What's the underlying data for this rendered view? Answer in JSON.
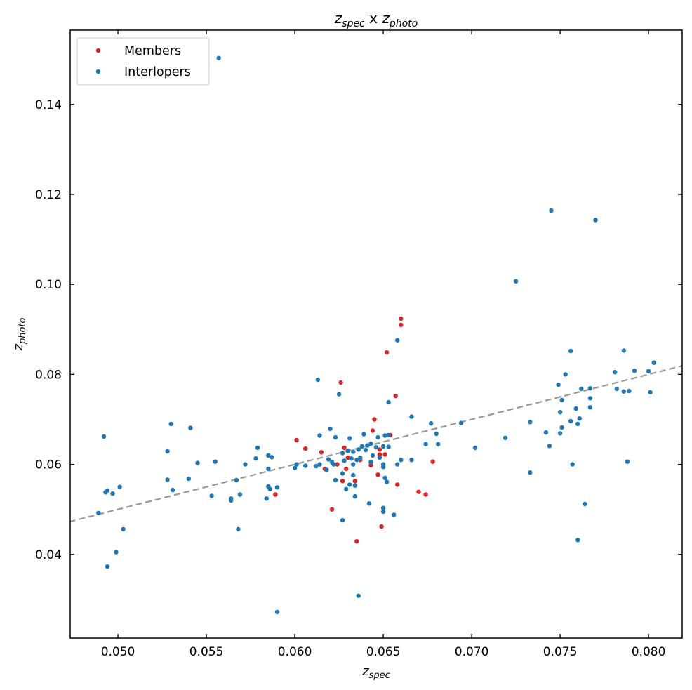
{
  "chart_data": {
    "type": "scatter",
    "title": {
      "main": "z",
      "sub1": "spec",
      "mid": " x ",
      "main2": "z",
      "sub2": "photo"
    },
    "xlabel": {
      "main": "z",
      "sub": "spec"
    },
    "ylabel": {
      "main": "z",
      "sub": "photo"
    },
    "xlim": [
      0.0473,
      0.0819
    ],
    "ylim": [
      0.0214,
      0.1565
    ],
    "xticks": [
      0.05,
      0.055,
      0.06,
      0.065,
      0.07,
      0.075,
      0.08
    ],
    "xtick_labels": [
      "0.050",
      "0.055",
      "0.060",
      "0.065",
      "0.070",
      "0.075",
      "0.080"
    ],
    "yticks": [
      0.04,
      0.06,
      0.08,
      0.1,
      0.12,
      0.14
    ],
    "ytick_labels": [
      "0.04",
      "0.06",
      "0.08",
      "0.10",
      "0.12",
      "0.14"
    ],
    "reference_line": {
      "type": "y=x",
      "style": "dashed",
      "color": "#999999"
    },
    "grid": false,
    "legend_position": "top-left",
    "series": [
      {
        "name": "Members",
        "color": "#d62728",
        "points": [
          [
            0.066,
            0.0924
          ],
          [
            0.066,
            0.091
          ],
          [
            0.0652,
            0.0849
          ],
          [
            0.0657,
            0.0752
          ],
          [
            0.0626,
            0.0782
          ],
          [
            0.0645,
            0.07
          ],
          [
            0.0601,
            0.0654
          ],
          [
            0.0606,
            0.0635
          ],
          [
            0.0615,
            0.0627
          ],
          [
            0.0628,
            0.0637
          ],
          [
            0.0644,
            0.0675
          ],
          [
            0.0648,
            0.0622
          ],
          [
            0.0651,
            0.0622
          ],
          [
            0.063,
            0.0615
          ],
          [
            0.0637,
            0.061
          ],
          [
            0.0624,
            0.06
          ],
          [
            0.0629,
            0.059
          ],
          [
            0.0617,
            0.059
          ],
          [
            0.0648,
            0.0633
          ],
          [
            0.0634,
            0.0563
          ],
          [
            0.0627,
            0.0563
          ],
          [
            0.0647,
            0.0577
          ],
          [
            0.0658,
            0.0555
          ],
          [
            0.0654,
            0.0665
          ],
          [
            0.0643,
            0.0598
          ],
          [
            0.0678,
            0.0606
          ],
          [
            0.0589,
            0.0533
          ],
          [
            0.067,
            0.0539
          ],
          [
            0.0674,
            0.0533
          ],
          [
            0.0621,
            0.05
          ],
          [
            0.0649,
            0.0462
          ],
          [
            0.0635,
            0.0429
          ]
        ]
      },
      {
        "name": "Interlopers",
        "color": "#1f77b4",
        "points": [
          [
            0.0557,
            0.1503
          ],
          [
            0.0745,
            0.1164
          ],
          [
            0.077,
            0.1143
          ],
          [
            0.0725,
            0.1007
          ],
          [
            0.0658,
            0.0876
          ],
          [
            0.0786,
            0.0853
          ],
          [
            0.0756,
            0.0852
          ],
          [
            0.0803,
            0.0826
          ],
          [
            0.0753,
            0.08
          ],
          [
            0.0781,
            0.0805
          ],
          [
            0.0792,
            0.0808
          ],
          [
            0.08,
            0.0807
          ],
          [
            0.0613,
            0.0788
          ],
          [
            0.0749,
            0.0777
          ],
          [
            0.0762,
            0.0768
          ],
          [
            0.0767,
            0.0769
          ],
          [
            0.0782,
            0.0768
          ],
          [
            0.0786,
            0.0762
          ],
          [
            0.0789,
            0.0763
          ],
          [
            0.0801,
            0.076
          ],
          [
            0.0625,
            0.0756
          ],
          [
            0.0751,
            0.0743
          ],
          [
            0.0767,
            0.0747
          ],
          [
            0.0653,
            0.0738
          ],
          [
            0.0759,
            0.0724
          ],
          [
            0.0767,
            0.0727
          ],
          [
            0.075,
            0.0716
          ],
          [
            0.0666,
            0.0706
          ],
          [
            0.0761,
            0.0702
          ],
          [
            0.0756,
            0.0696
          ],
          [
            0.0733,
            0.0694
          ],
          [
            0.076,
            0.069
          ],
          [
            0.0694,
            0.0692
          ],
          [
            0.0677,
            0.0691
          ],
          [
            0.053,
            0.069
          ],
          [
            0.0541,
            0.0681
          ],
          [
            0.0751,
            0.0682
          ],
          [
            0.0742,
            0.0671
          ],
          [
            0.075,
            0.0669
          ],
          [
            0.0492,
            0.0662
          ],
          [
            0.068,
            0.0668
          ],
          [
            0.062,
            0.0679
          ],
          [
            0.0614,
            0.0664
          ],
          [
            0.0623,
            0.066
          ],
          [
            0.0631,
            0.0658
          ],
          [
            0.0639,
            0.0667
          ],
          [
            0.0647,
            0.066
          ],
          [
            0.0651,
            0.0664
          ],
          [
            0.0653,
            0.0665
          ],
          [
            0.0719,
            0.0659
          ],
          [
            0.0744,
            0.0641
          ],
          [
            0.0702,
            0.0637
          ],
          [
            0.0674,
            0.0645
          ],
          [
            0.0681,
            0.0645
          ],
          [
            0.0528,
            0.0629
          ],
          [
            0.0579,
            0.0637
          ],
          [
            0.0585,
            0.062
          ],
          [
            0.0587,
            0.0616
          ],
          [
            0.0578,
            0.0613
          ],
          [
            0.0619,
            0.0611
          ],
          [
            0.0627,
            0.0625
          ],
          [
            0.063,
            0.063
          ],
          [
            0.0633,
            0.0628
          ],
          [
            0.0636,
            0.0633
          ],
          [
            0.0638,
            0.064
          ],
          [
            0.0641,
            0.0642
          ],
          [
            0.0643,
            0.0646
          ],
          [
            0.0646,
            0.0638
          ],
          [
            0.065,
            0.064
          ],
          [
            0.0653,
            0.0639
          ],
          [
            0.064,
            0.0632
          ],
          [
            0.0644,
            0.062
          ],
          [
            0.0648,
            0.0615
          ],
          [
            0.0632,
            0.0613
          ],
          [
            0.0635,
            0.061
          ],
          [
            0.0637,
            0.0615
          ],
          [
            0.0643,
            0.0605
          ],
          [
            0.0628,
            0.0608
          ],
          [
            0.0666,
            0.061
          ],
          [
            0.066,
            0.061
          ],
          [
            0.0658,
            0.06
          ],
          [
            0.065,
            0.06
          ],
          [
            0.0633,
            0.06
          ],
          [
            0.0622,
            0.06
          ],
          [
            0.0621,
            0.0605
          ],
          [
            0.0614,
            0.06
          ],
          [
            0.0612,
            0.0596
          ],
          [
            0.0606,
            0.0597
          ],
          [
            0.06,
            0.0592
          ],
          [
            0.0601,
            0.06
          ],
          [
            0.0572,
            0.06
          ],
          [
            0.0555,
            0.0606
          ],
          [
            0.0545,
            0.0603
          ],
          [
            0.0585,
            0.059
          ],
          [
            0.0618,
            0.0588
          ],
          [
            0.0627,
            0.058
          ],
          [
            0.0633,
            0.0576
          ],
          [
            0.065,
            0.0594
          ],
          [
            0.0651,
            0.057
          ],
          [
            0.0652,
            0.0561
          ],
          [
            0.0528,
            0.0566
          ],
          [
            0.054,
            0.0568
          ],
          [
            0.0567,
            0.0565
          ],
          [
            0.0623,
            0.0565
          ],
          [
            0.0631,
            0.0555
          ],
          [
            0.0634,
            0.0553
          ],
          [
            0.0629,
            0.0545
          ],
          [
            0.0585,
            0.0551
          ],
          [
            0.059,
            0.0549
          ],
          [
            0.0586,
            0.0545
          ],
          [
            0.0531,
            0.0543
          ],
          [
            0.0501,
            0.055
          ],
          [
            0.0494,
            0.0542
          ],
          [
            0.0493,
            0.0538
          ],
          [
            0.0497,
            0.0535
          ],
          [
            0.0569,
            0.0533
          ],
          [
            0.0553,
            0.053
          ],
          [
            0.0564,
            0.0524
          ],
          [
            0.0564,
            0.052
          ],
          [
            0.0584,
            0.0524
          ],
          [
            0.0634,
            0.0529
          ],
          [
            0.0642,
            0.0513
          ],
          [
            0.065,
            0.0503
          ],
          [
            0.065,
            0.0495
          ],
          [
            0.0656,
            0.0488
          ],
          [
            0.0627,
            0.0476
          ],
          [
            0.0489,
            0.0492
          ],
          [
            0.0503,
            0.0456
          ],
          [
            0.0568,
            0.0456
          ],
          [
            0.0764,
            0.0512
          ],
          [
            0.0757,
            0.06
          ],
          [
            0.0788,
            0.0606
          ],
          [
            0.0733,
            0.0582
          ],
          [
            0.0499,
            0.0405
          ],
          [
            0.0494,
            0.0373
          ],
          [
            0.076,
            0.0432
          ],
          [
            0.0636,
            0.0308
          ],
          [
            0.059,
            0.0272
          ]
        ]
      }
    ]
  }
}
